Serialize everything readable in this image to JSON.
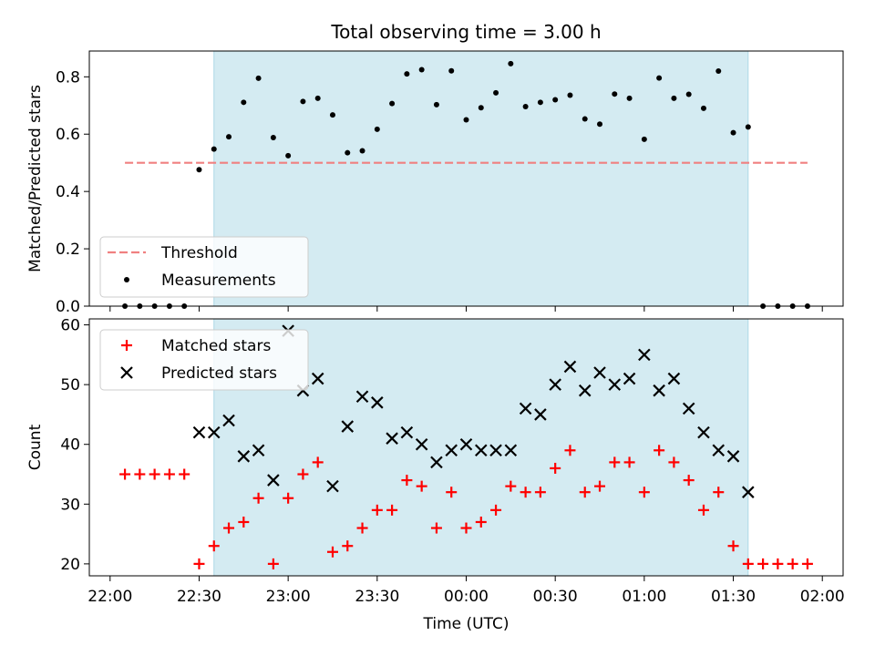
{
  "chart_data": [
    {
      "type": "scatter",
      "panel": "top",
      "title": "Total observing time = 3.00 h",
      "xlabel": "",
      "ylabel": "Matched/Predicted stars",
      "ylim": [
        0,
        0.89
      ],
      "yticks": [
        0.0,
        0.2,
        0.4,
        0.6,
        0.8
      ],
      "ytick_labels": [
        "0.0",
        "0.2",
        "0.4",
        "0.6",
        "0.8"
      ],
      "xlim_minutes_since_2200": [
        -7,
        247
      ],
      "shaded_interval_minutes": [
        35,
        215
      ],
      "shaded_color": "#d4ebf2",
      "threshold": {
        "name": "Threshold",
        "value": 0.5,
        "x_minutes": [
          5,
          235
        ],
        "color": "#f08080"
      },
      "measurements": {
        "name": "Measurements",
        "color": "#000000",
        "x_minutes": [
          5,
          10,
          15,
          20,
          25,
          30,
          35,
          40,
          45,
          50,
          55,
          60,
          65,
          70,
          75,
          80,
          85,
          90,
          95,
          100,
          105,
          110,
          115,
          120,
          125,
          130,
          135,
          140,
          145,
          150,
          155,
          160,
          165,
          170,
          175,
          180,
          185,
          190,
          195,
          200,
          205,
          210,
          215,
          220,
          225,
          230,
          235
        ],
        "values": [
          0,
          0,
          0,
          0,
          0,
          0.476,
          0.548,
          0.591,
          0.711,
          0.795,
          0.588,
          0.525,
          0.714,
          0.725,
          0.667,
          0.535,
          0.542,
          0.617,
          0.707,
          0.81,
          0.825,
          0.703,
          0.821,
          0.65,
          0.692,
          0.744,
          0.846,
          0.696,
          0.711,
          0.72,
          0.736,
          0.653,
          0.635,
          0.74,
          0.725,
          0.582,
          0.796,
          0.725,
          0.739,
          0.69,
          0.82,
          0.605,
          0.625,
          0,
          0,
          0,
          0
        ]
      },
      "legend": {
        "position": "lower-left",
        "entries": [
          "Threshold",
          "Measurements"
        ]
      },
      "grid": false
    },
    {
      "type": "scatter",
      "panel": "bottom",
      "title": "",
      "xlabel": "Time (UTC)",
      "ylabel": "Count",
      "ylim": [
        18,
        61
      ],
      "yticks": [
        20,
        30,
        40,
        50,
        60
      ],
      "ytick_labels": [
        "20",
        "30",
        "40",
        "50",
        "60"
      ],
      "xlim_minutes_since_2200": [
        -7,
        247
      ],
      "xticks_minutes": [
        0,
        30,
        60,
        90,
        120,
        150,
        180,
        210,
        240
      ],
      "xtick_labels": [
        "22:00",
        "22:30",
        "23:00",
        "23:30",
        "00:00",
        "00:30",
        "01:00",
        "01:30",
        "02:00"
      ],
      "shaded_interval_minutes": [
        35,
        215
      ],
      "shaded_color": "#d4ebf2",
      "series": [
        {
          "name": "Matched stars",
          "marker": "plus",
          "color": "#ff0000",
          "x_minutes": [
            5,
            10,
            15,
            20,
            25,
            30,
            35,
            40,
            45,
            50,
            55,
            60,
            65,
            70,
            75,
            80,
            85,
            90,
            95,
            100,
            105,
            110,
            115,
            120,
            125,
            130,
            135,
            140,
            145,
            150,
            155,
            160,
            165,
            170,
            175,
            180,
            185,
            190,
            195,
            200,
            205,
            210,
            215,
            220,
            225,
            230,
            235
          ],
          "values": [
            35,
            35,
            35,
            35,
            35,
            20,
            23,
            26,
            27,
            31,
            20,
            31,
            35,
            37,
            22,
            23,
            26,
            29,
            29,
            34,
            33,
            26,
            32,
            26,
            27,
            29,
            33,
            32,
            32,
            36,
            39,
            32,
            33,
            37,
            37,
            32,
            39,
            37,
            34,
            29,
            32,
            23,
            20,
            20,
            20,
            20,
            20
          ]
        },
        {
          "name": "Predicted stars",
          "marker": "x",
          "color": "#000000",
          "x_minutes": [
            30,
            35,
            40,
            45,
            50,
            55,
            60,
            65,
            70,
            75,
            80,
            85,
            90,
            95,
            100,
            105,
            110,
            115,
            120,
            125,
            130,
            135,
            140,
            145,
            150,
            155,
            160,
            165,
            170,
            175,
            180,
            185,
            190,
            195,
            200,
            205,
            210,
            215
          ],
          "values": [
            42,
            42,
            44,
            38,
            39,
            34,
            59,
            49,
            51,
            33,
            43,
            48,
            47,
            41,
            42,
            40,
            37,
            39,
            40,
            39,
            39,
            39,
            46,
            45,
            50,
            53,
            49,
            52,
            50,
            51,
            55,
            49,
            51,
            46,
            42,
            39,
            38,
            32
          ]
        }
      ],
      "legend": {
        "position": "upper-left",
        "entries": [
          "Matched stars",
          "Predicted stars"
        ]
      },
      "grid": false
    }
  ]
}
